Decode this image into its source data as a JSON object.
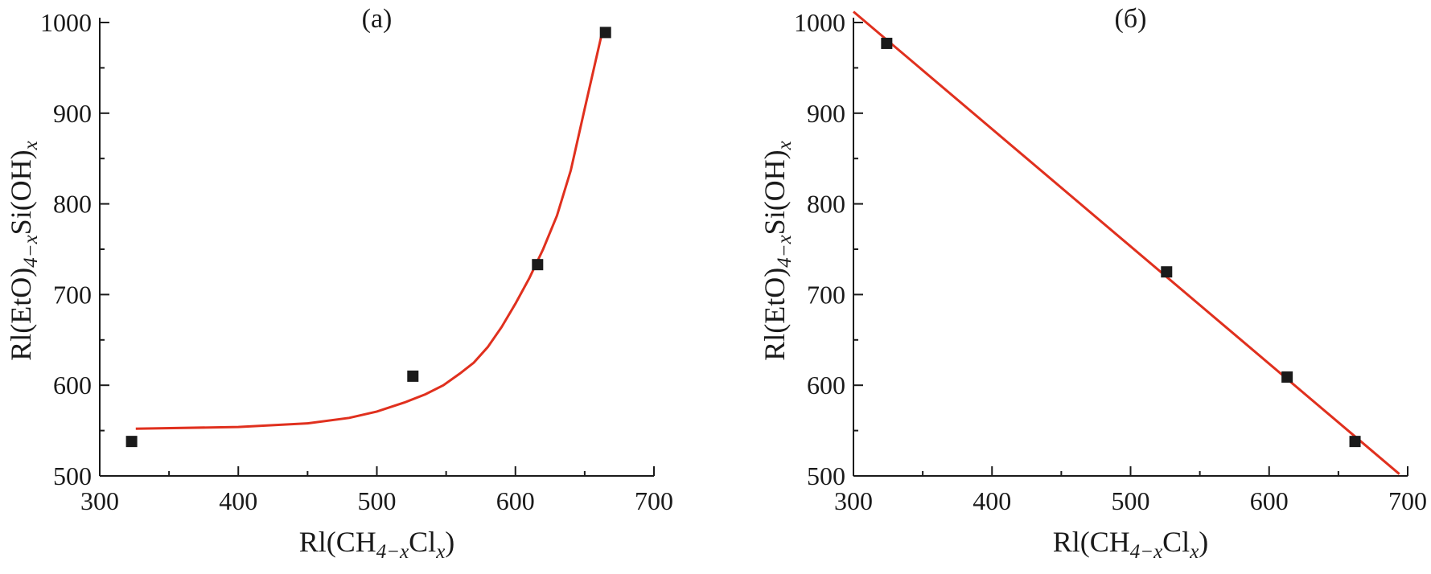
{
  "chart_data": [
    {
      "type": "scatter",
      "panel_label": "(а)",
      "xlabel": {
        "main": "Rl(CH",
        "sub1": "4−x",
        "mid": "Cl",
        "sub2": "x",
        "end": ")"
      },
      "ylabel": {
        "main": "Rl(EtO)",
        "sub1": "4−x",
        "mid": "Si(OH)",
        "sub2": "x"
      },
      "xlim": [
        300,
        700
      ],
      "ylim": [
        500,
        1000
      ],
      "xticks": [
        "300",
        "400",
        "500",
        "600",
        "700"
      ],
      "yticks": [
        "500",
        "600",
        "700",
        "800",
        "900",
        "1000"
      ],
      "grid": false,
      "points": [
        {
          "x": 323,
          "y": 538
        },
        {
          "x": 526,
          "y": 610
        },
        {
          "x": 616,
          "y": 733
        },
        {
          "x": 665,
          "y": 989
        }
      ],
      "fit": {
        "kind": "curve",
        "color": "#e0301e",
        "points": [
          [
            326,
            552
          ],
          [
            400,
            554
          ],
          [
            450,
            558
          ],
          [
            480,
            564
          ],
          [
            500,
            571
          ],
          [
            520,
            581
          ],
          [
            535,
            590
          ],
          [
            548,
            600
          ],
          [
            560,
            613
          ],
          [
            570,
            625
          ],
          [
            580,
            642
          ],
          [
            590,
            664
          ],
          [
            600,
            690
          ],
          [
            610,
            718
          ],
          [
            620,
            750
          ],
          [
            630,
            787
          ],
          [
            640,
            837
          ],
          [
            650,
            905
          ],
          [
            662,
            985
          ]
        ]
      },
      "marker_color": "#1a1a1a"
    },
    {
      "type": "scatter",
      "panel_label": "(б)",
      "xlabel": {
        "main": "Rl(CH",
        "sub1": "4−x",
        "mid": "Cl",
        "sub2": "x",
        "end": ")"
      },
      "ylabel": {
        "main": "Rl(EtO)",
        "sub1": "4−x",
        "mid": "Si(OH)",
        "sub2": "x"
      },
      "xlim": [
        300,
        700
      ],
      "ylim": [
        500,
        1000
      ],
      "xticks": [
        "300",
        "400",
        "500",
        "600",
        "700"
      ],
      "yticks": [
        "500",
        "600",
        "700",
        "800",
        "900",
        "1000"
      ],
      "grid": false,
      "points": [
        {
          "x": 324,
          "y": 977
        },
        {
          "x": 526,
          "y": 725
        },
        {
          "x": 613,
          "y": 609
        },
        {
          "x": 662,
          "y": 538
        }
      ],
      "fit": {
        "kind": "line",
        "color": "#e0301e",
        "points": [
          [
            300,
            1012
          ],
          [
            694,
            502
          ]
        ]
      },
      "marker_color": "#1a1a1a"
    }
  ]
}
